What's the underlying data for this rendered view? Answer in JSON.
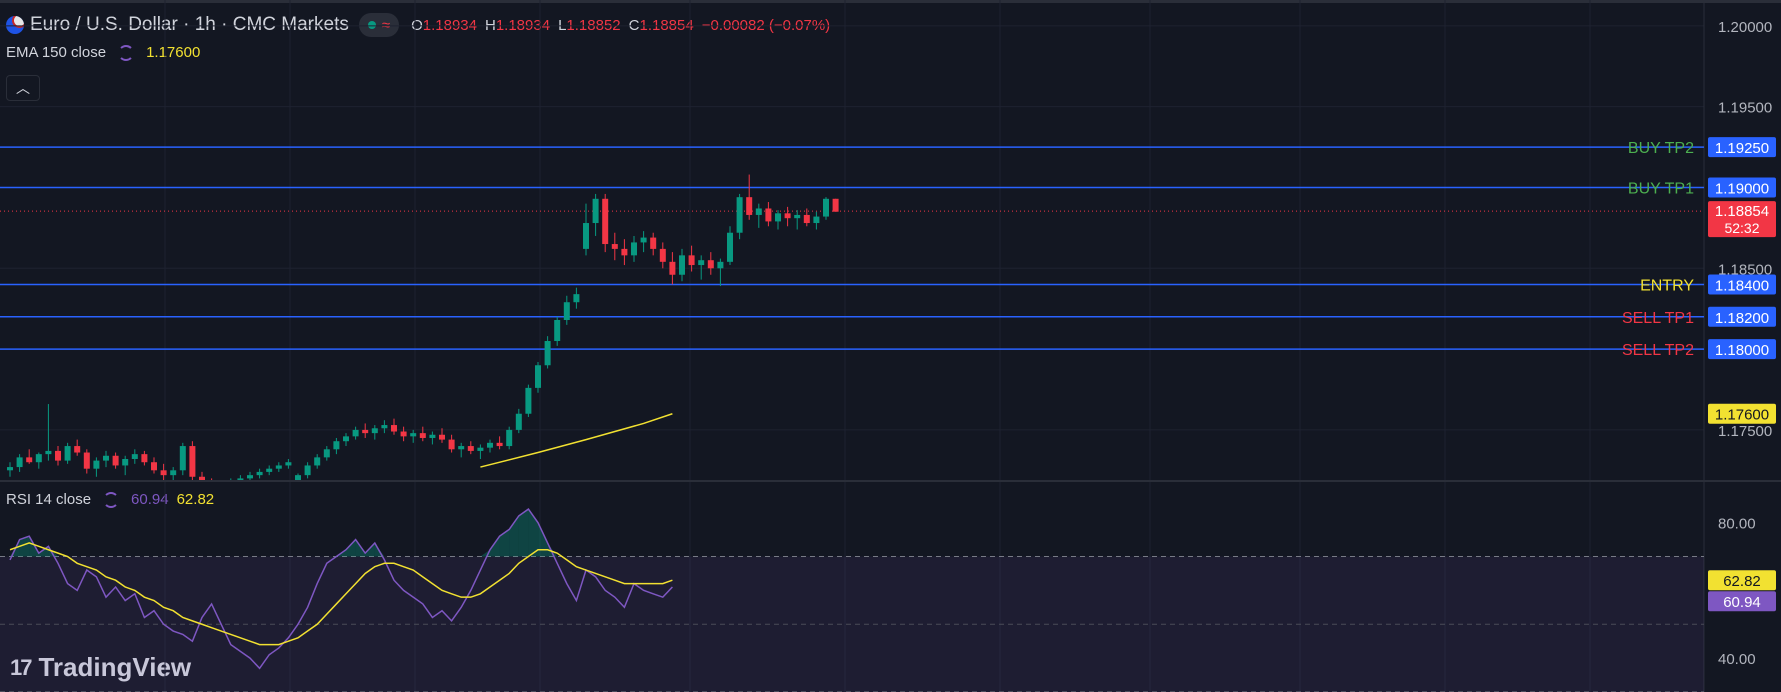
{
  "header": {
    "symbol_title": "Euro / U.S. Dollar · 1h · CMC Markets",
    "market_status_icon": "green-dot-icon",
    "wave_icon": "wave-icon",
    "ohlc": [
      {
        "key": "O",
        "value": "1.18934"
      },
      {
        "key": "H",
        "value": "1.18934"
      },
      {
        "key": "L",
        "value": "1.18852"
      },
      {
        "key": "C",
        "value": "1.18854"
      }
    ],
    "change": "−0.00082 (−0.07%)"
  },
  "ema_indicator": {
    "label": "EMA 150 close",
    "value": "1.17600"
  },
  "rsi_indicator": {
    "label": "RSI 14 close",
    "value_rsi": "60.94",
    "value_ma": "62.82"
  },
  "collapse_icon": "chevron-up-icon",
  "logo": {
    "text": "TradingView"
  },
  "colors": {
    "background": "#131722",
    "up": "#089981",
    "down": "#f23645",
    "level_line": "#2962ff",
    "ema": "#f2e131",
    "rsi": "#7e57c2",
    "rsi_ma": "#f2e131"
  },
  "chart_data": [
    {
      "type": "candlestick",
      "title": "",
      "y_ticks": [
        "1.20000",
        "1.19500",
        "1.18500",
        "1.17500"
      ],
      "y_tick_values": [
        1.2,
        1.195,
        1.185,
        1.175
      ],
      "ylim": [
        1.1719,
        1.2016
      ],
      "current_price": {
        "value": 1.18854,
        "label": "1.18854",
        "countdown": "52:32"
      },
      "levels": [
        {
          "name": "BUY TP2",
          "value": 1.1925,
          "label": "1.19250",
          "color": "#4caf50"
        },
        {
          "name": "BUY TP1",
          "value": 1.19,
          "label": "1.19000",
          "color": "#4caf50"
        },
        {
          "name": "ENTRY",
          "value": 1.184,
          "label": "1.18400",
          "color": "#f2e131"
        },
        {
          "name": "SELL TP1",
          "value": 1.182,
          "label": "1.18200",
          "color": "#f23645"
        },
        {
          "name": "SELL TP2",
          "value": 1.18,
          "label": "1.18000",
          "color": "#f23645"
        }
      ],
      "ema": {
        "label": "1.17600",
        "points": [
          [
            49,
            1.1727
          ],
          [
            55,
            1.1736
          ],
          [
            60,
            1.1744
          ],
          [
            66,
            1.1754
          ],
          [
            69,
            1.176
          ]
        ]
      },
      "candles": [
        [
          1.1725,
          1.173,
          1.1721,
          1.1727
        ],
        [
          1.1727,
          1.1735,
          1.1724,
          1.1733
        ],
        [
          1.1733,
          1.1738,
          1.1729,
          1.173
        ],
        [
          1.173,
          1.1736,
          1.1726,
          1.1735
        ],
        [
          1.1735,
          1.1766,
          1.1731,
          1.1737
        ],
        [
          1.1737,
          1.174,
          1.1728,
          1.1731
        ],
        [
          1.1731,
          1.1742,
          1.1729,
          1.174
        ],
        [
          1.174,
          1.1744,
          1.1734,
          1.1736
        ],
        [
          1.1736,
          1.1738,
          1.1723,
          1.1726
        ],
        [
          1.1726,
          1.1733,
          1.1721,
          1.1731
        ],
        [
          1.1731,
          1.1737,
          1.1727,
          1.1734
        ],
        [
          1.1734,
          1.1736,
          1.1726,
          1.1728
        ],
        [
          1.1728,
          1.1734,
          1.1722,
          1.1732
        ],
        [
          1.1732,
          1.1738,
          1.1729,
          1.1735
        ],
        [
          1.1735,
          1.1737,
          1.1728,
          1.173
        ],
        [
          1.173,
          1.1733,
          1.1723,
          1.1725
        ],
        [
          1.1725,
          1.1729,
          1.1719,
          1.1722
        ],
        [
          1.1722,
          1.1727,
          1.1717,
          1.1725
        ],
        [
          1.1725,
          1.1742,
          1.1722,
          1.174
        ],
        [
          1.174,
          1.1743,
          1.1719,
          1.1721
        ],
        [
          1.1721,
          1.1724,
          1.1715,
          1.1718
        ],
        [
          1.1718,
          1.172,
          1.1712,
          1.1716
        ],
        [
          1.1716,
          1.1719,
          1.1711,
          1.1717
        ],
        [
          1.1717,
          1.172,
          1.1714,
          1.1718
        ],
        [
          1.1718,
          1.1722,
          1.1716,
          1.172
        ],
        [
          1.172,
          1.1724,
          1.1718,
          1.1722
        ],
        [
          1.1722,
          1.1726,
          1.172,
          1.1724
        ],
        [
          1.1724,
          1.1728,
          1.1722,
          1.1726
        ],
        [
          1.1726,
          1.173,
          1.1724,
          1.1728
        ],
        [
          1.1728,
          1.1732,
          1.1726,
          1.173
        ],
        [
          1.1716,
          1.1723,
          1.1715,
          1.1722
        ],
        [
          1.1722,
          1.173,
          1.172,
          1.1728
        ],
        [
          1.1728,
          1.1735,
          1.1726,
          1.1733
        ],
        [
          1.1733,
          1.174,
          1.1731,
          1.1738
        ],
        [
          1.1738,
          1.1745,
          1.1735,
          1.1743
        ],
        [
          1.1743,
          1.1748,
          1.174,
          1.1746
        ],
        [
          1.1746,
          1.1752,
          1.1744,
          1.175
        ],
        [
          1.175,
          1.1754,
          1.1745,
          1.1748
        ],
        [
          1.1748,
          1.1753,
          1.1744,
          1.1751
        ],
        [
          1.1751,
          1.1756,
          1.1748,
          1.1753
        ],
        [
          1.1753,
          1.1757,
          1.1747,
          1.1749
        ],
        [
          1.1749,
          1.1752,
          1.1743,
          1.1746
        ],
        [
          1.1746,
          1.175,
          1.1742,
          1.1748
        ],
        [
          1.1748,
          1.1752,
          1.1743,
          1.1745
        ],
        [
          1.1745,
          1.1749,
          1.1741,
          1.1747
        ],
        [
          1.1747,
          1.1751,
          1.1742,
          1.1744
        ],
        [
          1.1744,
          1.1747,
          1.1736,
          1.1738
        ],
        [
          1.1738,
          1.1742,
          1.1733,
          1.174
        ],
        [
          1.174,
          1.1743,
          1.1735,
          1.1737
        ],
        [
          1.1737,
          1.1741,
          1.1732,
          1.1739
        ],
        [
          1.1739,
          1.1744,
          1.1736,
          1.1742
        ],
        [
          1.1742,
          1.1746,
          1.1738,
          1.174
        ],
        [
          1.174,
          1.1752,
          1.1738,
          1.175
        ],
        [
          1.175,
          1.1763,
          1.1748,
          1.176
        ],
        [
          1.176,
          1.1778,
          1.1758,
          1.1776
        ],
        [
          1.1776,
          1.1792,
          1.1773,
          1.179
        ],
        [
          1.179,
          1.1808,
          1.1788,
          1.1805
        ],
        [
          1.1805,
          1.182,
          1.1802,
          1.1818
        ],
        [
          1.1818,
          1.1833,
          1.1815,
          1.1829
        ],
        [
          1.1829,
          1.1838,
          1.1825,
          1.1834
        ],
        [
          1.1862,
          1.189,
          1.1858,
          1.1878
        ],
        [
          1.1878,
          1.1896,
          1.187,
          1.1893
        ],
        [
          1.1893,
          1.1896,
          1.186,
          1.1865
        ],
        [
          1.1865,
          1.1872,
          1.1855,
          1.1862
        ],
        [
          1.1862,
          1.1868,
          1.1852,
          1.1858
        ],
        [
          1.1858,
          1.187,
          1.1854,
          1.1866
        ],
        [
          1.1866,
          1.1873,
          1.186,
          1.1869
        ],
        [
          1.1869,
          1.1872,
          1.1858,
          1.1862
        ],
        [
          1.1862,
          1.1866,
          1.185,
          1.1854
        ],
        [
          1.1854,
          1.186,
          1.184,
          1.1846
        ],
        [
          1.1846,
          1.1862,
          1.1842,
          1.1858
        ],
        [
          1.1858,
          1.1864,
          1.1848,
          1.1852
        ],
        [
          1.1852,
          1.1858,
          1.1843,
          1.1855
        ],
        [
          1.1855,
          1.186,
          1.1846,
          1.185
        ],
        [
          1.185,
          1.1856,
          1.1839,
          1.1854
        ],
        [
          1.1854,
          1.1876,
          1.1852,
          1.1872
        ],
        [
          1.1872,
          1.1896,
          1.1868,
          1.1894
        ],
        [
          1.1894,
          1.1908,
          1.188,
          1.1883
        ],
        [
          1.1883,
          1.189,
          1.1875,
          1.1887
        ],
        [
          1.1887,
          1.1891,
          1.1876,
          1.1879
        ],
        [
          1.1879,
          1.1886,
          1.1874,
          1.1884
        ],
        [
          1.1884,
          1.1888,
          1.1876,
          1.1881
        ],
        [
          1.1881,
          1.1886,
          1.1874,
          1.1883
        ],
        [
          1.1883,
          1.1887,
          1.1876,
          1.1878
        ],
        [
          1.1878,
          1.1885,
          1.1874,
          1.1882
        ],
        [
          1.1882,
          1.1894,
          1.188,
          1.1893
        ],
        [
          1.1893,
          1.1893,
          1.1885,
          1.1885
        ]
      ]
    },
    {
      "type": "line",
      "title": "",
      "y_ticks": [
        "80.00",
        "40.00"
      ],
      "y_tick_values": [
        80,
        40
      ],
      "ylim": [
        30,
        92
      ],
      "bands": {
        "upper": 70,
        "middle": 50,
        "lower": 30
      },
      "series": [
        {
          "name": "RSI",
          "label": "60.94",
          "values": [
            69,
            75,
            76,
            71,
            73,
            68,
            62,
            60,
            66,
            64,
            58,
            61,
            57,
            59,
            52,
            54,
            50,
            48,
            47,
            45,
            52,
            56,
            50,
            44,
            42,
            40,
            37,
            41,
            43,
            46,
            50,
            55,
            62,
            68,
            70,
            72,
            75,
            71,
            74,
            69,
            63,
            60,
            58,
            56,
            52,
            54,
            51,
            55,
            60,
            66,
            72,
            76,
            78,
            82,
            84,
            80,
            74,
            68,
            62,
            57,
            66,
            64,
            60,
            58,
            55,
            62,
            60,
            59,
            58,
            61
          ]
        },
        {
          "name": "RSI MA",
          "label": "62.82",
          "values": [
            72,
            73,
            74,
            73,
            72,
            71,
            70,
            68,
            67,
            66,
            64,
            63,
            61,
            60,
            58,
            57,
            55,
            54,
            52,
            51,
            50,
            49,
            48,
            47,
            46,
            45,
            44,
            44,
            44,
            45,
            46,
            48,
            50,
            53,
            56,
            59,
            62,
            65,
            67,
            68,
            68,
            67,
            66,
            64,
            62,
            60,
            59,
            58,
            58,
            59,
            61,
            63,
            65,
            68,
            70,
            72,
            72,
            71,
            69,
            67,
            66,
            65,
            64,
            63,
            62,
            62,
            62,
            62,
            62,
            63
          ]
        }
      ]
    }
  ]
}
